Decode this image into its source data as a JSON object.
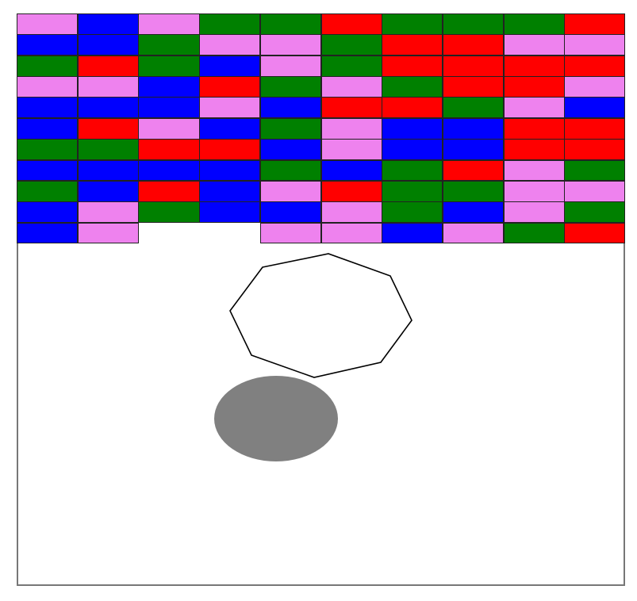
{
  "game": {
    "colors": {
      "pink": "#ee82ee",
      "blue": "#0000ff",
      "green": "#008000",
      "red": "#ff0000",
      "empty": null
    },
    "brick_rows": [
      [
        "pink",
        "blue",
        "pink",
        "green",
        "green",
        "red",
        "green",
        "green",
        "green",
        "red"
      ],
      [
        "blue",
        "blue",
        "green",
        "pink",
        "pink",
        "green",
        "red",
        "red",
        "pink",
        "pink"
      ],
      [
        "green",
        "red",
        "green",
        "blue",
        "pink",
        "green",
        "red",
        "red",
        "red",
        "red"
      ],
      [
        "pink",
        "pink",
        "blue",
        "red",
        "green",
        "pink",
        "green",
        "red",
        "red",
        "pink"
      ],
      [
        "blue",
        "blue",
        "blue",
        "pink",
        "blue",
        "red",
        "red",
        "green",
        "pink",
        "blue"
      ],
      [
        "blue",
        "red",
        "pink",
        "blue",
        "green",
        "pink",
        "blue",
        "blue",
        "red",
        "red"
      ],
      [
        "green",
        "green",
        "red",
        "red",
        "blue",
        "pink",
        "blue",
        "blue",
        "red",
        "red"
      ],
      [
        "blue",
        "blue",
        "blue",
        "blue",
        "green",
        "blue",
        "green",
        "red",
        "pink",
        "green"
      ],
      [
        "green",
        "blue",
        "red",
        "blue",
        "pink",
        "red",
        "green",
        "green",
        "pink",
        "pink"
      ],
      [
        "blue",
        "pink",
        "green",
        "blue",
        "blue",
        "pink",
        "green",
        "blue",
        "pink",
        "green"
      ],
      [
        "blue",
        "pink",
        "empty",
        "empty",
        "pink",
        "pink",
        "blue",
        "pink",
        "green",
        "red"
      ]
    ],
    "paddle": {
      "shape": "octagon",
      "outline_color": "#000000",
      "fill_color": "#ffffff"
    },
    "ball": {
      "shape": "ellipse",
      "color": "#808080"
    },
    "wall_color": "#777777"
  }
}
